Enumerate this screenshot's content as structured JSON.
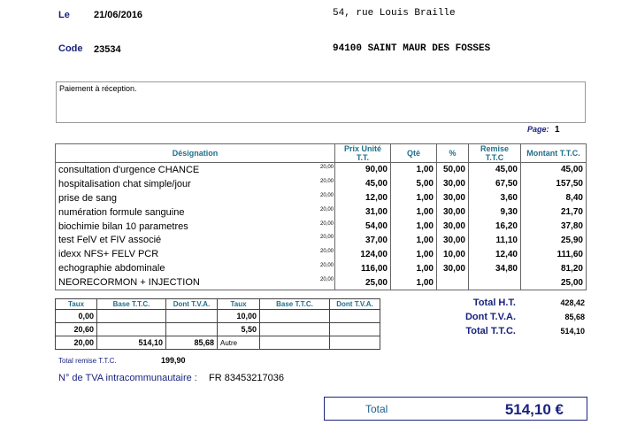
{
  "header": {
    "date_label": "Le",
    "date_value": "21/06/2016",
    "code_label": "Code",
    "code_value": "23534",
    "address_line1": "54, rue Louis Braille",
    "address_line2": "94100 SAINT MAUR DES FOSSES"
  },
  "notes": "Paiement à réception.",
  "page": {
    "label": "Page:",
    "number": "1"
  },
  "items_table": {
    "headers": [
      "Désignation",
      "Prix Unité T.T.",
      "Qté",
      "%",
      "Remise T.T.C",
      "Montant T.T.C."
    ],
    "rows": [
      {
        "designation": "consultation d'urgence CHANCE",
        "tva": "20,00",
        "price": "90,00",
        "qty": "1,00",
        "pct": "50,00",
        "discount": "45,00",
        "amount": "45,00"
      },
      {
        "designation": "hospitalisation chat simple/jour",
        "tva": "20,00",
        "price": "45,00",
        "qty": "5,00",
        "pct": "30,00",
        "discount": "67,50",
        "amount": "157,50"
      },
      {
        "designation": "prise de sang",
        "tva": "20,00",
        "price": "12,00",
        "qty": "1,00",
        "pct": "30,00",
        "discount": "3,60",
        "amount": "8,40"
      },
      {
        "designation": "numération formule sanguine",
        "tva": "20,00",
        "price": "31,00",
        "qty": "1,00",
        "pct": "30,00",
        "discount": "9,30",
        "amount": "21,70"
      },
      {
        "designation": "biochimie bilan 10 parametres",
        "tva": "20,00",
        "price": "54,00",
        "qty": "1,00",
        "pct": "30,00",
        "discount": "16,20",
        "amount": "37,80"
      },
      {
        "designation": "test FelV et FIV associé",
        "tva": "20,00",
        "price": "37,00",
        "qty": "1,00",
        "pct": "30,00",
        "discount": "11,10",
        "amount": "25,90"
      },
      {
        "designation": "idexx  NFS+ FELV PCR",
        "tva": "20,00",
        "price": "124,00",
        "qty": "1,00",
        "pct": "10,00",
        "discount": "12,40",
        "amount": "111,60"
      },
      {
        "designation": "echographie abdominale",
        "tva": "20,00",
        "price": "116,00",
        "qty": "1,00",
        "pct": "30,00",
        "discount": "34,80",
        "amount": "81,20"
      },
      {
        "designation": "NEORECORMON + INJECTION",
        "tva": "20,00",
        "price": "25,00",
        "qty": "1,00",
        "pct": "",
        "discount": "",
        "amount": "25,00"
      }
    ]
  },
  "vat_table": {
    "headers": [
      "Taux",
      "Base T.T.C.",
      "Dont T.V.A.",
      "Taux",
      "Base T.T.C.",
      "Dont T.V.A."
    ],
    "rows": [
      [
        "0,00",
        "",
        "",
        "10,00",
        "",
        ""
      ],
      [
        "20,60",
        "",
        "",
        "5,50",
        "",
        ""
      ],
      [
        "20,00",
        "514,10",
        "85,68",
        "Autre",
        "",
        ""
      ]
    ]
  },
  "totals": {
    "ht_label": "Total H.T.",
    "ht_value": "428,42",
    "tva_label": "Dont T.V.A.",
    "tva_value": "85,68",
    "ttc_label": "Total  T.T.C.",
    "ttc_value": "514,10"
  },
  "remise": {
    "label": "Total remise T.T.C.",
    "value": "199,90"
  },
  "vat_number": {
    "label": "N° de TVA intracommunautaire :",
    "value": "FR 83453217036"
  },
  "grand_total": {
    "label": "Total",
    "value": "514,10 €"
  }
}
